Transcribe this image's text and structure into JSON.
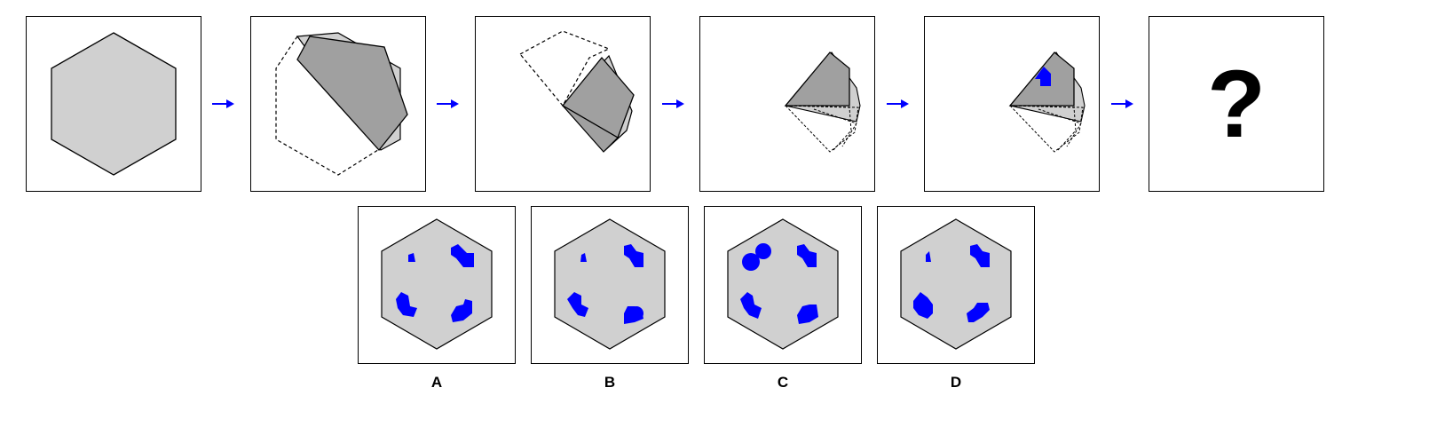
{
  "colors": {
    "hexagon_fill": "#d0d0d0",
    "fold_fill": "#a0a0a0",
    "hole_color": "#0000ff",
    "arrow_color": "#0000ff",
    "stroke": "#000000"
  },
  "sequence": {
    "steps": [
      "full-hexagon",
      "fold-1",
      "fold-2",
      "fold-3",
      "punched-hole"
    ],
    "arrow_icon": "right-arrow-icon",
    "question_text": "?"
  },
  "options": [
    {
      "label": "A"
    },
    {
      "label": "B"
    },
    {
      "label": "C"
    },
    {
      "label": "D"
    }
  ]
}
